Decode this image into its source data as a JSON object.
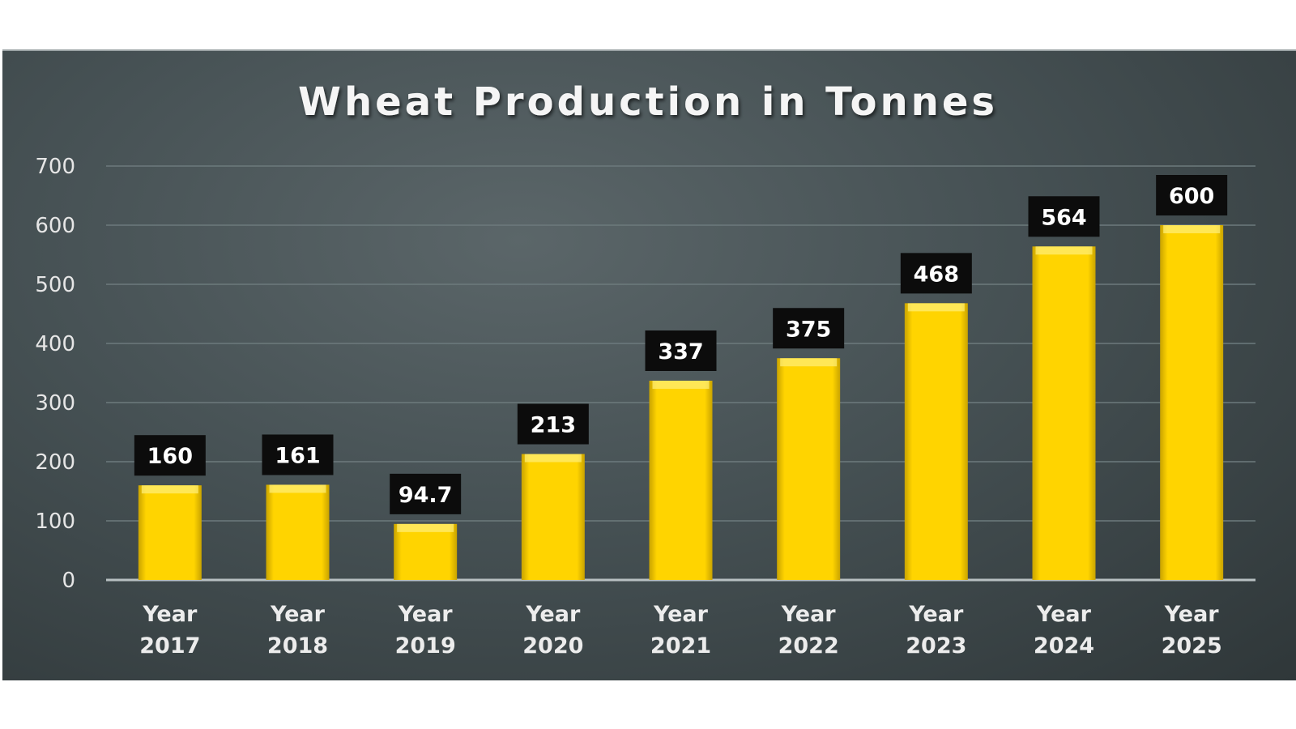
{
  "chart_data": {
    "type": "bar",
    "title": "Wheat Production in Tonnes",
    "xlabel": "",
    "ylabel": "",
    "ylim": [
      0,
      700
    ],
    "yticks": [
      "0",
      "100",
      "200",
      "300",
      "400",
      "500",
      "600",
      "700"
    ],
    "grid": true,
    "categories": [
      [
        "Year",
        "2017"
      ],
      [
        "Year",
        "2018"
      ],
      [
        "Year",
        "2019"
      ],
      [
        "Year",
        "2020"
      ],
      [
        "Year",
        "2021"
      ],
      [
        "Year",
        "2022"
      ],
      [
        "Year",
        "2023"
      ],
      [
        "Year",
        "2024"
      ],
      [
        "Year",
        "2025"
      ]
    ],
    "values": [
      160,
      161,
      94.7,
      213,
      337,
      375,
      468,
      564,
      600
    ],
    "data_labels": [
      "160",
      "161",
      "94.7",
      "213",
      "337",
      "375",
      "468",
      "564",
      "600"
    ],
    "colors": {
      "bar": "#ffd400",
      "bar_dark": "#c9a300",
      "label_bg": "#0c0c0c",
      "text": "#f2f2f2",
      "grid": "#6d7a7d"
    }
  }
}
